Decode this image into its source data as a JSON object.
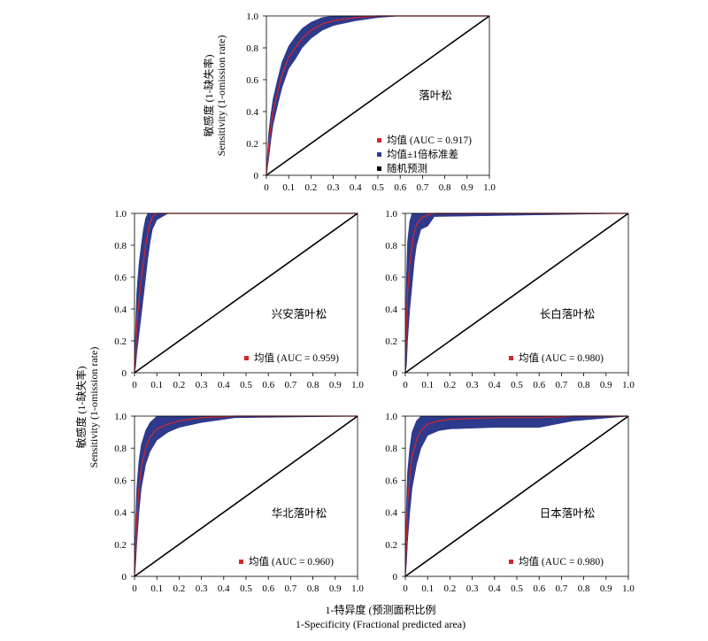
{
  "shared_labels": {
    "y_cn": "敏感度 (1-缺失率)",
    "y_en": "Sensitivity (1-omission rate)",
    "x_cn": "1-特异度 (预测面积比例",
    "x_en": "1-Specificity (Fractional predicted area)"
  },
  "colors": {
    "mean": "#d62728",
    "band": "#2e3a8c",
    "random": "#000000"
  },
  "legend": {
    "mean": "均值 (AUC = 0.917)",
    "std": "均值±1倍标准差",
    "random": "随机预测"
  },
  "chart_data": [
    {
      "type": "line",
      "title": "落叶松",
      "auc_label": "",
      "xlim": [
        0,
        1
      ],
      "ylim": [
        0,
        1
      ],
      "xticks": [
        "0",
        "0.1",
        "0.2",
        "0.3",
        "0.4",
        "0.5",
        "0.6",
        "0.7",
        "0.8",
        "0.9",
        "1.0"
      ],
      "yticks": [
        "0",
        "0.2",
        "0.4",
        "0.6",
        "0.8",
        "1.0"
      ],
      "series": [
        {
          "name": "均值 (AUC = 0.917)",
          "x": [
            0,
            0.01,
            0.02,
            0.03,
            0.05,
            0.07,
            0.1,
            0.13,
            0.16,
            0.2,
            0.25,
            0.3,
            0.4,
            0.5,
            0.6,
            1.0
          ],
          "y": [
            0,
            0.18,
            0.3,
            0.4,
            0.52,
            0.63,
            0.74,
            0.8,
            0.86,
            0.91,
            0.95,
            0.97,
            0.99,
            1.0,
            1.0,
            1.0
          ]
        },
        {
          "name": "均值±1倍标准差",
          "x": [
            0,
            0.01,
            0.02,
            0.03,
            0.05,
            0.07,
            0.1,
            0.13,
            0.16,
            0.2,
            0.25,
            0.3,
            0.4,
            0.5,
            0.6,
            1.0
          ],
          "upper": [
            0.02,
            0.26,
            0.38,
            0.48,
            0.6,
            0.71,
            0.81,
            0.87,
            0.92,
            0.96,
            0.99,
            1.0,
            1.0,
            1.0,
            1.0,
            1.0
          ],
          "lower": [
            0,
            0.1,
            0.22,
            0.32,
            0.44,
            0.55,
            0.67,
            0.73,
            0.8,
            0.86,
            0.91,
            0.94,
            0.97,
            0.99,
            1.0,
            1.0
          ]
        },
        {
          "name": "随机预测",
          "x": [
            0,
            1
          ],
          "y": [
            0,
            1
          ]
        }
      ]
    },
    {
      "type": "line",
      "title": "兴安落叶松",
      "auc_label": "均值 (AUC = 0.959)",
      "xlim": [
        0,
        1
      ],
      "ylim": [
        0,
        1
      ],
      "xticks": [
        "0",
        "0.1",
        "0.2",
        "0.3",
        "0.4",
        "0.5",
        "0.6",
        "0.7",
        "0.8",
        "0.9",
        "1.0"
      ],
      "yticks": [
        "0",
        "0.2",
        "0.4",
        "0.6",
        "0.8",
        "1.0"
      ],
      "series": [
        {
          "name": "均值 (AUC = 0.959)",
          "x": [
            0,
            0.005,
            0.01,
            0.02,
            0.03,
            0.04,
            0.05,
            0.06,
            0.07,
            0.08,
            0.1,
            0.15,
            1.0
          ],
          "y": [
            0,
            0.15,
            0.3,
            0.45,
            0.58,
            0.7,
            0.8,
            0.88,
            0.94,
            0.98,
            1.0,
            1.0,
            1.0
          ]
        },
        {
          "name": "±1SD",
          "x": [
            0,
            0.005,
            0.01,
            0.02,
            0.03,
            0.04,
            0.05,
            0.06,
            0.07,
            0.08,
            0.1,
            0.15,
            1.0
          ],
          "upper": [
            0.05,
            0.3,
            0.5,
            0.68,
            0.8,
            0.9,
            0.97,
            1.0,
            1.0,
            1.0,
            1.0,
            1.0,
            1.0
          ],
          "lower": [
            0,
            0.04,
            0.12,
            0.24,
            0.36,
            0.48,
            0.6,
            0.72,
            0.82,
            0.9,
            0.96,
            1.0,
            1.0
          ]
        },
        {
          "name": "随机预测",
          "x": [
            0,
            1
          ],
          "y": [
            0,
            1
          ]
        }
      ]
    },
    {
      "type": "line",
      "title": "长白落叶松",
      "auc_label": "均值 (AUC = 0.980)",
      "xlim": [
        0,
        1
      ],
      "ylim": [
        0,
        1
      ],
      "xticks": [
        "0",
        "0.1",
        "0.2",
        "0.3",
        "0.4",
        "0.5",
        "0.6",
        "0.7",
        "0.8",
        "0.9",
        "1.0"
      ],
      "yticks": [
        "0",
        "0.2",
        "0.4",
        "0.6",
        "0.8",
        "1.0"
      ],
      "series": [
        {
          "name": "均值 (AUC = 0.980)",
          "x": [
            0,
            0.005,
            0.01,
            0.02,
            0.03,
            0.04,
            0.05,
            0.07,
            0.1,
            0.13,
            1.0
          ],
          "y": [
            0,
            0.3,
            0.5,
            0.68,
            0.8,
            0.88,
            0.93,
            0.97,
            0.99,
            1.0,
            1.0
          ]
        },
        {
          "name": "±1SD",
          "x": [
            0,
            0.005,
            0.01,
            0.02,
            0.03,
            0.04,
            0.05,
            0.07,
            0.1,
            0.13,
            1.0
          ],
          "upper": [
            0.1,
            0.6,
            0.82,
            0.95,
            1.0,
            1.0,
            1.0,
            1.0,
            1.0,
            1.0,
            1.0
          ],
          "lower": [
            0,
            0.05,
            0.2,
            0.4,
            0.55,
            0.7,
            0.8,
            0.9,
            0.92,
            0.98,
            1.0
          ]
        },
        {
          "name": "随机预测",
          "x": [
            0,
            1
          ],
          "y": [
            0,
            1
          ]
        }
      ]
    },
    {
      "type": "line",
      "title": "华北落叶松",
      "auc_label": "均值 (AUC = 0.960)",
      "xlim": [
        0,
        1
      ],
      "ylim": [
        0,
        1
      ],
      "xticks": [
        "0",
        "0.1",
        "0.2",
        "0.3",
        "0.4",
        "0.5",
        "0.6",
        "0.7",
        "0.8",
        "0.9",
        "1.0"
      ],
      "yticks": [
        "0",
        "0.2",
        "0.4",
        "0.6",
        "0.8",
        "1.0"
      ],
      "series": [
        {
          "name": "均值 (AUC = 0.960)",
          "x": [
            0,
            0.005,
            0.01,
            0.02,
            0.03,
            0.05,
            0.07,
            0.1,
            0.15,
            0.2,
            0.3,
            0.45,
            1.0
          ],
          "y": [
            0,
            0.2,
            0.36,
            0.55,
            0.68,
            0.8,
            0.87,
            0.92,
            0.95,
            0.97,
            0.99,
            1.0,
            1.0
          ]
        },
        {
          "name": "±1SD",
          "x": [
            0,
            0.005,
            0.01,
            0.02,
            0.03,
            0.05,
            0.07,
            0.1,
            0.15,
            0.2,
            0.3,
            0.45,
            1.0
          ],
          "upper": [
            0.05,
            0.35,
            0.55,
            0.72,
            0.82,
            0.91,
            0.96,
            1.0,
            1.0,
            1.0,
            1.0,
            1.0,
            1.0
          ],
          "lower": [
            0,
            0.08,
            0.2,
            0.4,
            0.55,
            0.7,
            0.78,
            0.85,
            0.9,
            0.93,
            0.96,
            0.99,
            1.0
          ]
        },
        {
          "name": "随机预测",
          "x": [
            0,
            1
          ],
          "y": [
            0,
            1
          ]
        }
      ]
    },
    {
      "type": "line",
      "title": "日本落叶松",
      "auc_label": "均值 (AUC = 0.980)",
      "xlim": [
        0,
        1
      ],
      "ylim": [
        0,
        1
      ],
      "xticks": [
        "0",
        "0.1",
        "0.2",
        "0.3",
        "0.4",
        "0.5",
        "0.6",
        "0.7",
        "0.8",
        "0.9",
        "1.0"
      ],
      "yticks": [
        "0",
        "0.2",
        "0.4",
        "0.6",
        "0.8",
        "1.0"
      ],
      "series": [
        {
          "name": "均值 (AUC = 0.980)",
          "x": [
            0,
            0.005,
            0.01,
            0.02,
            0.03,
            0.05,
            0.07,
            0.1,
            0.15,
            0.2,
            0.4,
            0.6,
            0.75,
            1.0
          ],
          "y": [
            0,
            0.25,
            0.45,
            0.62,
            0.75,
            0.85,
            0.91,
            0.95,
            0.97,
            0.98,
            0.99,
            0.99,
            1.0,
            1.0
          ]
        },
        {
          "name": "±1SD",
          "x": [
            0,
            0.005,
            0.01,
            0.02,
            0.03,
            0.05,
            0.07,
            0.1,
            0.15,
            0.2,
            0.4,
            0.6,
            0.75,
            1.0
          ],
          "upper": [
            0.1,
            0.45,
            0.65,
            0.8,
            0.9,
            0.97,
            1.0,
            1.0,
            1.0,
            1.0,
            1.0,
            1.0,
            1.0,
            1.0
          ],
          "lower": [
            0,
            0.08,
            0.22,
            0.4,
            0.55,
            0.7,
            0.8,
            0.88,
            0.91,
            0.92,
            0.93,
            0.93,
            0.97,
            1.0
          ]
        },
        {
          "name": "随机预测",
          "x": [
            0,
            1
          ],
          "y": [
            0,
            1
          ]
        }
      ]
    }
  ]
}
